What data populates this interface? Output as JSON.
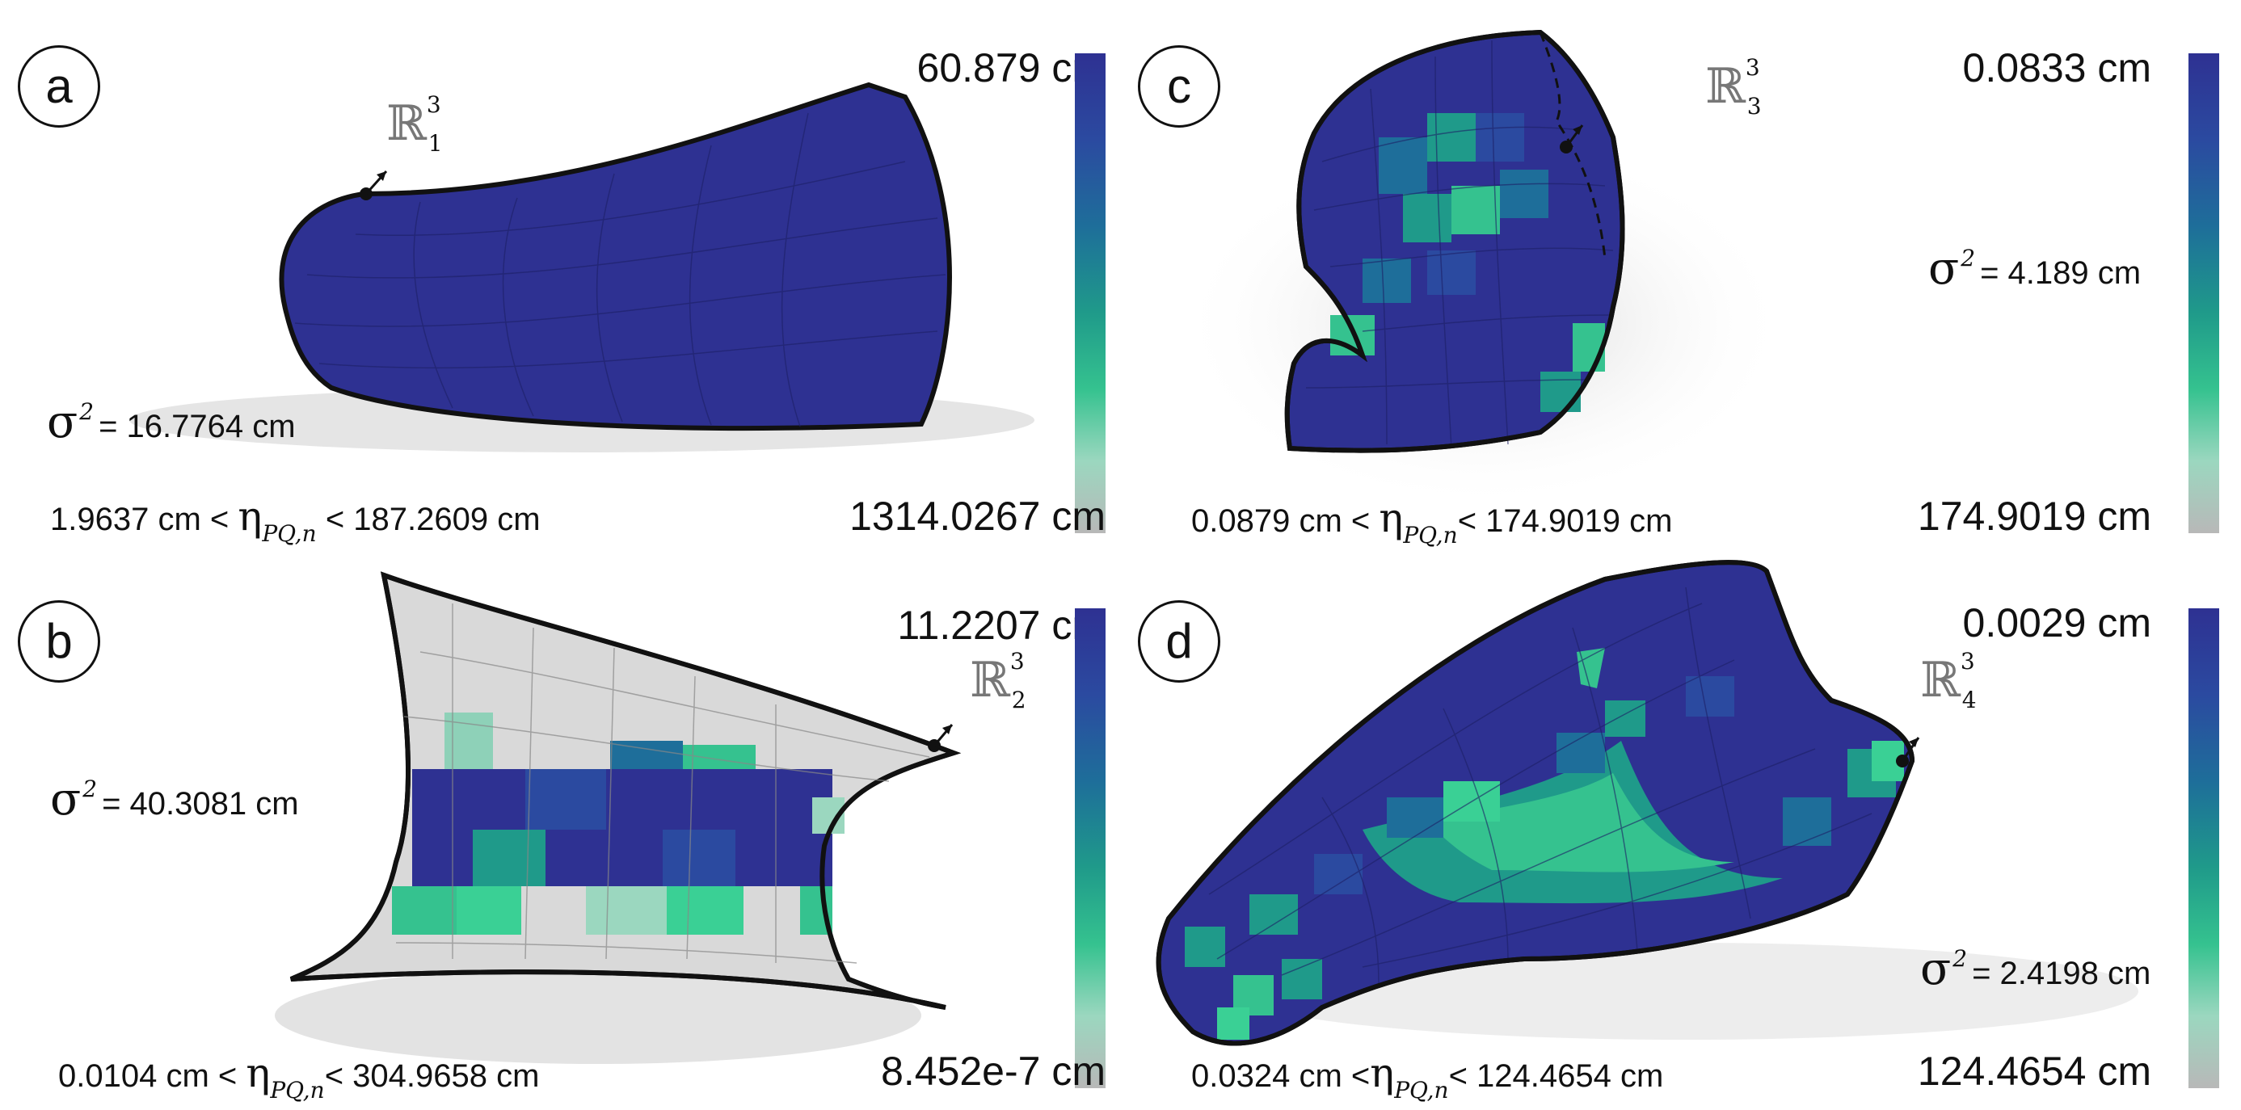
{
  "panels": {
    "a": {
      "label": "a",
      "colorbar_top": "60.879 cm",
      "colorbar_bottom": "1314.0267 cm",
      "sigma_value": "= 16.7764 cm",
      "range_left": "1.9637 cm <",
      "range_right": "< 187.2609 cm",
      "r_sub": "1"
    },
    "b": {
      "label": "b",
      "colorbar_top": "11.2207 cm",
      "colorbar_bottom": "8.452e-7 cm",
      "sigma_value": "= 40.3081 cm",
      "range_left": "0.0104  cm <",
      "range_right": "< 304.9658 cm",
      "r_sub": "2"
    },
    "c": {
      "label": "c",
      "colorbar_top": "0.0833 cm",
      "colorbar_bottom": "174.9019 cm",
      "sigma_value": "= 4.189 cm",
      "range_left": "0.0879 cm <",
      "range_right": "< 174.9019 cm",
      "r_sub": "3"
    },
    "d": {
      "label": "d",
      "colorbar_top": "0.0029 cm",
      "colorbar_bottom": "124.4654 cm",
      "sigma_value": "= 2.4198 cm",
      "range_left": "0.0324 cm <",
      "range_right": "< 124.4654 cm",
      "r_sub": "4"
    }
  },
  "symbols": {
    "sigma": "σ",
    "sigma_sup": "2",
    "eta": "η",
    "eta_sub": "PQ,n",
    "r_symbol": "ℝ",
    "r_sup": "3"
  },
  "colors": {
    "mesh_dark": "#2e3192",
    "mesh_mid": "#1e6e9a",
    "mesh_teal": "#1f9a8a",
    "mesh_green": "#35c28f",
    "mesh_light": "#9bd7bf",
    "mesh_grey": "#d9d9d9"
  }
}
